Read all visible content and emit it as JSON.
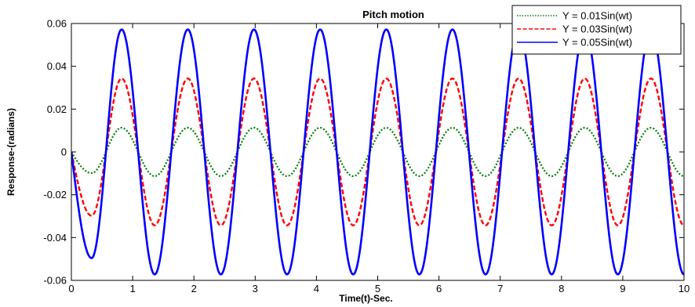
{
  "chart_data": {
    "type": "line",
    "title": "Pitch motion",
    "xlabel": "Time(t)-Sec.",
    "ylabel": "Response-(radians)",
    "xlim": [
      0,
      10
    ],
    "ylim": [
      -0.06,
      0.06
    ],
    "x_ticks": [
      "0",
      "1",
      "2",
      "3",
      "4",
      "5",
      "6",
      "7",
      "8",
      "9",
      "10"
    ],
    "y_ticks": [
      "0.06",
      "0.04",
      "0.02",
      "0",
      "-0.02",
      "-0.04",
      "-0.06"
    ],
    "grid": false,
    "legend_position": "top-right",
    "series": [
      {
        "name": "Y = 0.01Sin(wt)",
        "color": "#008000",
        "line_style": "dotted",
        "amplitude": 0.0113,
        "period_s": 1.08,
        "initial_min": -0.0099,
        "start_value": 0
      },
      {
        "name": "Y = 0.03Sin(wt)",
        "color": "#ff0000",
        "line_style": "dashed",
        "amplitude": 0.0343,
        "period_s": 1.08,
        "initial_min": -0.0298,
        "start_value": 0
      },
      {
        "name": "Y = 0.05Sin(wt)",
        "color": "#0000ff",
        "line_style": "solid",
        "amplitude": 0.0572,
        "period_s": 1.08,
        "initial_min": -0.0496,
        "start_value": 0
      }
    ]
  }
}
